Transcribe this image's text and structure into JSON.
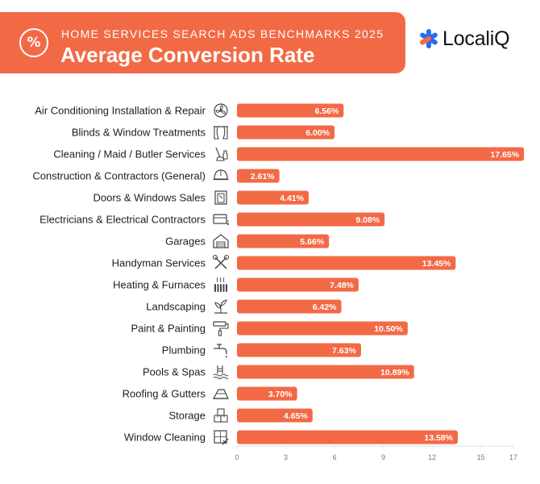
{
  "header": {
    "supertitle": "HOME SERVICES SEARCH ADS BENCHMARKS 2025",
    "title": "Average Conversion Rate",
    "percent_symbol": "%",
    "accent_color": "#f26a45"
  },
  "brand": {
    "name": "LocaliQ",
    "icon": "localiq-asterisk-icon",
    "icon_colors": [
      "#2a6cf0",
      "#f26a45"
    ]
  },
  "chart_data": {
    "type": "bar",
    "orientation": "horizontal",
    "title": "Average Conversion Rate",
    "categories": [
      "Air Conditioning Installation & Repair",
      "Blinds & Window Treatments",
      "Cleaning / Maid / Butler Services",
      "Construction & Contractors (General)",
      "Doors & Windows Sales",
      "Electricians & Electrical Contractors",
      "Garages",
      "Handyman Services",
      "Heating & Furnaces",
      "Landscaping",
      "Paint & Painting",
      "Plumbing",
      "Pools & Spas",
      "Roofing & Gutters",
      "Storage",
      "Window Cleaning"
    ],
    "values": [
      6.56,
      6.0,
      17.65,
      2.61,
      4.41,
      9.08,
      5.66,
      13.45,
      7.48,
      6.42,
      10.5,
      7.63,
      10.89,
      3.7,
      4.65,
      13.58
    ],
    "value_labels": [
      "6.56%",
      "6.00%",
      "17.65%",
      "2.61%",
      "4.41%",
      "9.08%",
      "5.66%",
      "13.45%",
      "7.48%",
      "6.42%",
      "10.50%",
      "7.63%",
      "10.89%",
      "3.70%",
      "4.65%",
      "13.58%"
    ],
    "icons": [
      "fan-icon",
      "curtains-icon",
      "cleaning-icon",
      "hard-hat-icon",
      "door-icon",
      "electrical-outlet-icon",
      "garage-icon",
      "tools-icon",
      "radiator-icon",
      "plant-icon",
      "paint-roller-icon",
      "faucet-icon",
      "pool-icon",
      "roof-icon",
      "boxes-icon",
      "window-squeegee-icon"
    ],
    "xticks": [
      0,
      3,
      6,
      9,
      12,
      15,
      17
    ],
    "xlim": [
      0,
      17
    ],
    "bar_color": "#f26a45",
    "xlabel": "",
    "ylabel": "",
    "grid": false
  }
}
